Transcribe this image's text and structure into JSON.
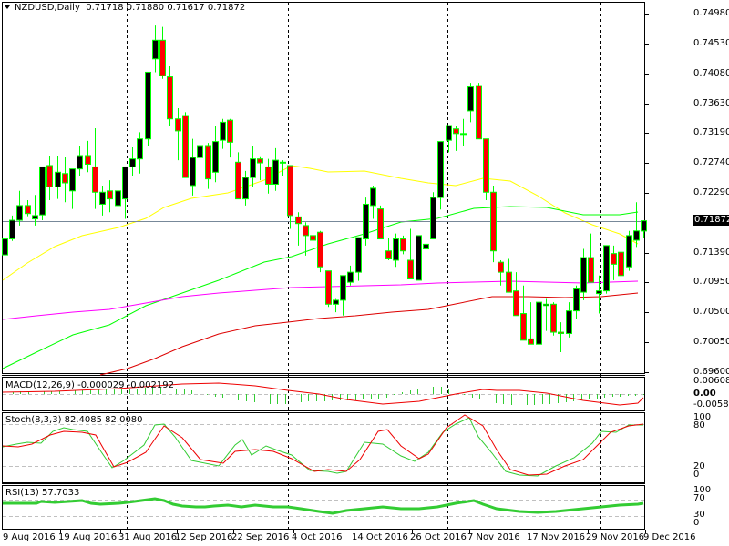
{
  "header": {
    "symbol_timeframe": "NZDUSD,Daily",
    "ohlc": "0.71718 0.71880 0.71617 0.71872",
    "collapse_icon": "triangle-down-icon"
  },
  "current_price": "0.71872",
  "price_axis": [
    "0.74980",
    "0.74530",
    "0.74080",
    "0.73630",
    "0.73190",
    "0.72740",
    "0.72290",
    "0.71390",
    "0.70950",
    "0.70500",
    "0.70050",
    "0.69600"
  ],
  "macd": {
    "label": "MACD(12,26,9) -0.000029 -0.002192",
    "axis": [
      "0.006089",
      "0.00",
      "-0.005809"
    ]
  },
  "stoch": {
    "label": "Stoch(8,3,3) 82.4085 82.0080",
    "axis": [
      "100",
      "80",
      "20",
      "0"
    ]
  },
  "rsi": {
    "label": "RSI(13) 57.7033",
    "axis": [
      "100",
      "70",
      "30",
      "0"
    ]
  },
  "date_axis": [
    "9 Aug 2016",
    "19 Aug 2016",
    "31 Aug 2016",
    "12 Sep 2016",
    "22 Sep 2016",
    "4 Oct 2016",
    "14 Oct 2016",
    "26 Oct 2016",
    "7 Nov 2016",
    "17 Nov 2016",
    "29 Nov 2016",
    "9 Dec 2016"
  ],
  "colors": {
    "bull_body": "#000000",
    "bear_body": "#ff0000",
    "candle_outline": "#00ff00",
    "ma_fast": "#ffff00",
    "ma_mid": "#00ff00",
    "ma_slow": "#ff00ff",
    "ma_200": "#dd0000",
    "macd_hist": "#33cc33",
    "signal": "#ee0000",
    "stoch_main": "#33cc33",
    "rsi": "#33cc33",
    "price_line": "#778899"
  },
  "chart_data": {
    "type": "candlestick",
    "title": "NZDUSD,Daily",
    "ylabel": "Price",
    "ylim": [
      0.696,
      0.7498
    ],
    "x_ticks": [
      "9 Aug 2016",
      "19 Aug 2016",
      "31 Aug 2016",
      "12 Sep 2016",
      "22 Sep 2016",
      "4 Oct 2016",
      "14 Oct 2016",
      "26 Oct 2016",
      "7 Nov 2016",
      "17 Nov 2016",
      "29 Nov 2016",
      "9 Dec 2016"
    ],
    "last_ohlc": {
      "open": 0.71718,
      "high": 0.7188,
      "low": 0.71617,
      "close": 0.71872
    },
    "candles_ohlc": [
      [
        0.7136,
        0.7168,
        0.7107,
        0.716
      ],
      [
        0.716,
        0.7195,
        0.7157,
        0.7188
      ],
      [
        0.7188,
        0.7232,
        0.718,
        0.721
      ],
      [
        0.721,
        0.7218,
        0.7194,
        0.7198
      ],
      [
        0.719,
        0.7226,
        0.718,
        0.7195
      ],
      [
        0.7196,
        0.7236,
        0.7188,
        0.7268
      ],
      [
        0.727,
        0.7285,
        0.7218,
        0.7238
      ],
      [
        0.7238,
        0.7285,
        0.722,
        0.726
      ],
      [
        0.7258,
        0.7283,
        0.7215,
        0.7244
      ],
      [
        0.7232,
        0.726,
        0.7205,
        0.7265
      ],
      [
        0.7265,
        0.73,
        0.7255,
        0.7285
      ],
      [
        0.7285,
        0.7307,
        0.726,
        0.7272
      ],
      [
        0.7268,
        0.7326,
        0.7205,
        0.723
      ],
      [
        0.7212,
        0.724,
        0.7195,
        0.723
      ],
      [
        0.7232,
        0.7248,
        0.72,
        0.722
      ],
      [
        0.721,
        0.724,
        0.72,
        0.7232
      ],
      [
        0.722,
        0.7268,
        0.719,
        0.7268
      ],
      [
        0.7268,
        0.7298,
        0.7255,
        0.728
      ],
      [
        0.728,
        0.732,
        0.7258,
        0.731
      ],
      [
        0.731,
        0.7404,
        0.73,
        0.741
      ],
      [
        0.743,
        0.748,
        0.741,
        0.7458
      ],
      [
        0.7458,
        0.7478,
        0.74,
        0.7405
      ],
      [
        0.7403,
        0.742,
        0.733,
        0.734
      ],
      [
        0.734,
        0.7356,
        0.7278,
        0.7322
      ],
      [
        0.7345,
        0.735,
        0.7252,
        0.7252
      ],
      [
        0.724,
        0.731,
        0.7225,
        0.7282
      ],
      [
        0.7282,
        0.7302,
        0.7222,
        0.73
      ],
      [
        0.73,
        0.7304,
        0.7235,
        0.725
      ],
      [
        0.726,
        0.733,
        0.7245,
        0.7306
      ],
      [
        0.7308,
        0.734,
        0.7295,
        0.7335
      ],
      [
        0.7338,
        0.734,
        0.7282,
        0.7305
      ],
      [
        0.7275,
        0.729,
        0.722,
        0.722
      ],
      [
        0.722,
        0.7262,
        0.721,
        0.7252
      ],
      [
        0.7252,
        0.73,
        0.7238,
        0.728
      ],
      [
        0.728,
        0.7284,
        0.7248,
        0.7274
      ],
      [
        0.7268,
        0.728,
        0.7228,
        0.7242
      ],
      [
        0.7242,
        0.7296,
        0.7232,
        0.7278
      ],
      [
        0.7275,
        0.7278,
        0.7255,
        0.7275
      ],
      [
        0.727,
        0.7255,
        0.7175,
        0.7195
      ],
      [
        0.7193,
        0.72,
        0.715,
        0.7183
      ],
      [
        0.718,
        0.7185,
        0.7135,
        0.7165
      ],
      [
        0.7165,
        0.7178,
        0.7132,
        0.7158
      ],
      [
        0.717,
        0.7172,
        0.711,
        0.7118
      ],
      [
        0.7112,
        0.711,
        0.7058,
        0.7062
      ],
      [
        0.7062,
        0.707,
        0.705,
        0.7068
      ],
      [
        0.7068,
        0.7105,
        0.7045,
        0.7105
      ],
      [
        0.7095,
        0.712,
        0.709,
        0.711
      ],
      [
        0.711,
        0.716,
        0.7097,
        0.7162
      ],
      [
        0.716,
        0.7222,
        0.715,
        0.7212
      ],
      [
        0.721,
        0.724,
        0.719,
        0.7236
      ],
      [
        0.7205,
        0.721,
        0.717,
        0.716
      ],
      [
        0.7142,
        0.7162,
        0.7128,
        0.713
      ],
      [
        0.7128,
        0.7168,
        0.7118,
        0.716
      ],
      [
        0.716,
        0.7165,
        0.7137,
        0.7142
      ],
      [
        0.7128,
        0.7175,
        0.7125,
        0.71
      ],
      [
        0.7098,
        0.716,
        0.7118,
        0.7165
      ],
      [
        0.7145,
        0.7162,
        0.7138,
        0.7152
      ],
      [
        0.716,
        0.723,
        0.716,
        0.7222
      ],
      [
        0.7222,
        0.7278,
        0.7204,
        0.7306
      ],
      [
        0.7308,
        0.7322,
        0.729,
        0.733
      ],
      [
        0.7325,
        0.733,
        0.7292,
        0.7318
      ],
      [
        0.7318,
        0.734,
        0.73,
        0.7318
      ],
      [
        0.7352,
        0.7394,
        0.7335,
        0.7388
      ],
      [
        0.739,
        0.7394,
        0.7335,
        0.731
      ],
      [
        0.731,
        0.7268,
        0.7218,
        0.723
      ],
      [
        0.723,
        0.724,
        0.7125,
        0.7142
      ],
      [
        0.7125,
        0.7128,
        0.709,
        0.711
      ],
      [
        0.711,
        0.713,
        0.7085,
        0.708
      ],
      [
        0.7082,
        0.711,
        0.707,
        0.7045
      ],
      [
        0.7048,
        0.709,
        0.7015,
        0.7008
      ],
      [
        0.701,
        0.7065,
        0.7002,
        0.7002
      ],
      [
        0.7002,
        0.707,
        0.6992,
        0.7065
      ],
      [
        0.706,
        0.707,
        0.7022,
        0.7062
      ],
      [
        0.7062,
        0.7065,
        0.7015,
        0.702
      ],
      [
        0.702,
        0.7035,
        0.699,
        0.7018
      ],
      [
        0.7018,
        0.7065,
        0.7012,
        0.7052
      ],
      [
        0.7052,
        0.709,
        0.704,
        0.7085
      ],
      [
        0.708,
        0.7145,
        0.7068,
        0.7132
      ],
      [
        0.7132,
        0.7168,
        0.71,
        0.7095
      ],
      [
        0.7078,
        0.7105,
        0.7048,
        0.7082
      ],
      [
        0.7082,
        0.7148,
        0.7078,
        0.715
      ],
      [
        0.7138,
        0.715,
        0.7098,
        0.7122
      ],
      [
        0.714,
        0.7148,
        0.7105,
        0.7105
      ],
      [
        0.7118,
        0.7172,
        0.7112,
        0.7165
      ],
      [
        0.7158,
        0.7215,
        0.7148,
        0.7172
      ],
      [
        0.71718,
        0.7188,
        0.71617,
        0.71872
      ]
    ],
    "indicators": {
      "MACD(12,26,9)": {
        "macd": -2.9e-05,
        "signal": -0.002192,
        "ylim": [
          -0.005809,
          0.006089
        ]
      },
      "Stoch(8,3,3)": {
        "k": 82.4085,
        "d": 82.008,
        "levels": [
          20,
          80
        ]
      },
      "RSI(13)": {
        "value": 57.7033,
        "levels": [
          30,
          70
        ]
      }
    },
    "grid": false
  }
}
